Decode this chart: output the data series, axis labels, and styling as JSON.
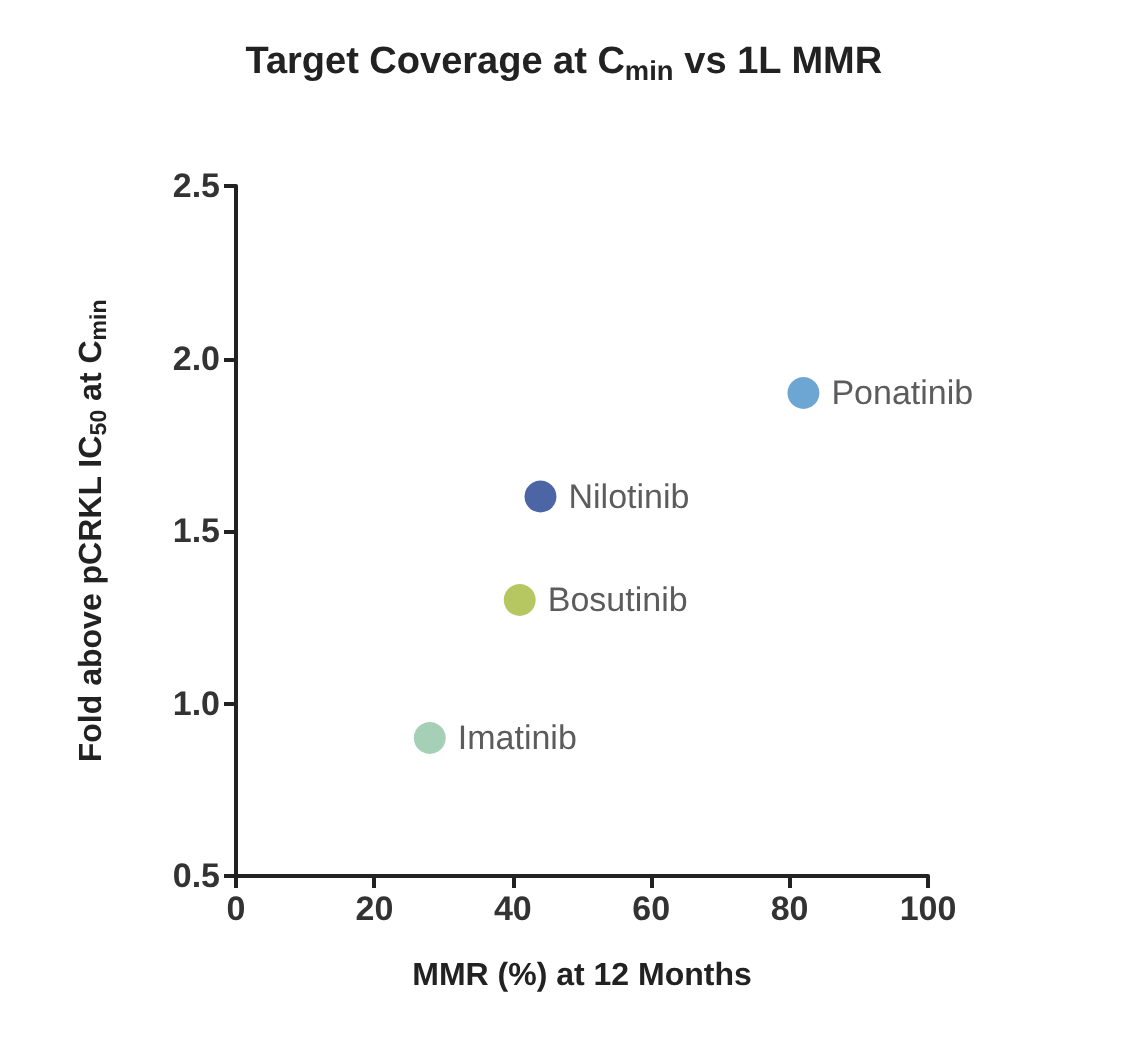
{
  "chart_data": {
    "type": "scatter",
    "title": "Target Coverage at C$_{min}$ vs 1L MMR",
    "xlabel": "MMR (%) at 12 Months",
    "ylabel": "Fold above pCRKL IC$_{50}$ at C$_{min}$",
    "xlim": [
      0,
      100
    ],
    "xticks": [
      0,
      20,
      40,
      60,
      80,
      100
    ],
    "ylim": [
      0.5,
      2.5
    ],
    "yticks": [
      0.5,
      {
        "value": 1,
        "label": "1.0"
      },
      1.5,
      {
        "value": 2,
        "label": "2.0"
      },
      2.5
    ],
    "series": [
      {
        "name": "Ponatinib",
        "color": "#4a90c8",
        "x": [
          82
        ],
        "values": [
          1.9
        ]
      },
      {
        "name": "Nilotinib",
        "color": "#1f3f8f",
        "x": [
          44
        ],
        "values": [
          1.6
        ]
      },
      {
        "name": "Bosutinib",
        "color": "#a4b83a",
        "x": [
          41
        ],
        "values": [
          1.3
        ]
      },
      {
        "name": "Imatinib",
        "color": "#8ec3a4",
        "x": [
          28
        ],
        "values": [
          0.9
        ]
      }
    ],
    "marker": "circle",
    "grid": false,
    "legend": false
  }
}
